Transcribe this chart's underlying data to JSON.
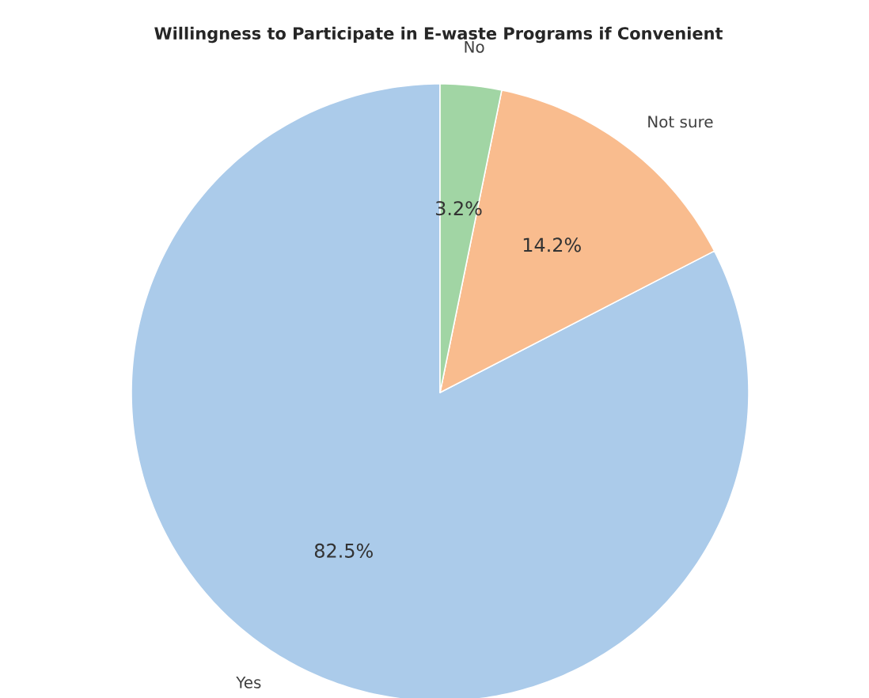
{
  "chart_data": {
    "type": "pie",
    "title": "Willingness to Participate in E-waste Programs if Convenient",
    "categories": [
      "Yes",
      "Not sure",
      "No"
    ],
    "values": [
      82.5,
      14.2,
      3.2
    ],
    "colors": [
      "#abcbea",
      "#f9bc8e",
      "#a1d5a4"
    ],
    "value_labels": [
      "82.5%",
      "14.2%",
      "3.2%"
    ]
  }
}
